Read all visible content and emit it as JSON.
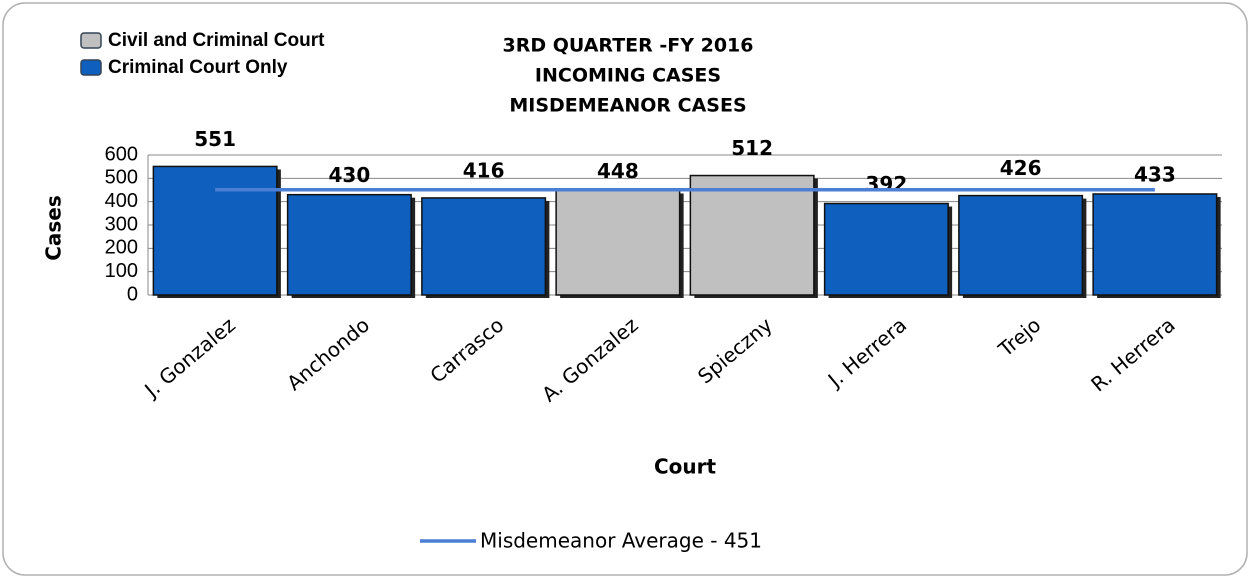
{
  "chart_data": {
    "type": "bar",
    "title": [
      "3RD QUARTER -FY 2016",
      "INCOMING CASES",
      "MISDEMEANOR CASES"
    ],
    "x_label": "Court",
    "y_label": "Cases",
    "categories": [
      "J. Gonzalez",
      "Anchondo",
      "Carrasco",
      "A. Gonzalez",
      "Spieczny",
      "J. Herrera",
      "Trejo",
      "R. Herrera"
    ],
    "values": [
      551,
      430,
      416,
      448,
      512,
      392,
      426,
      433
    ],
    "colors": [
      "#0f5fbf",
      "#0f5fbf",
      "#0f5fbf",
      "#c0c0c0",
      "#c0c0c0",
      "#0f5fbf",
      "#0f5fbf",
      "#0f5fbf"
    ],
    "legend": [
      {
        "name": "Civil and Criminal Court",
        "color": "#c0c0c0"
      },
      {
        "name": "Criminal Court Only",
        "color": "#0f5fbf"
      }
    ],
    "average": {
      "name": "Misdemeanor Average - 451",
      "value": 451,
      "color": "#4a7fd4"
    },
    "ylim": [
      0,
      600
    ],
    "yticks": [
      0,
      100,
      200,
      300,
      400,
      500,
      600
    ],
    "grid": true
  }
}
